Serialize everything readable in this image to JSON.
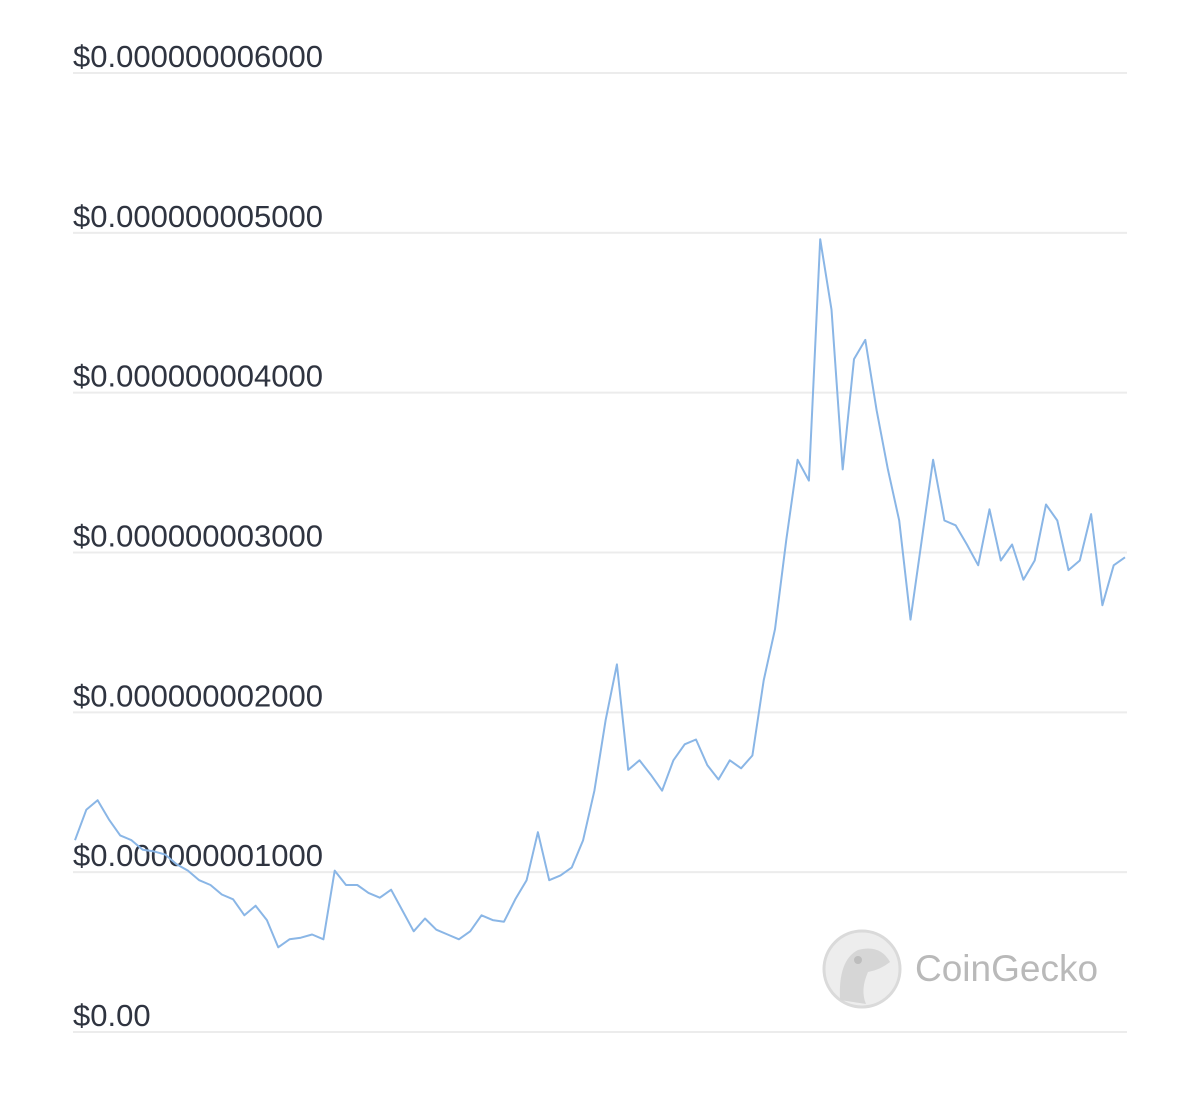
{
  "chart_data": {
    "type": "line",
    "watermark": "CoinGecko",
    "color": "#8ab6e6",
    "grid": true,
    "ylim": [
      0,
      6e-09
    ],
    "yticks": [
      {
        "value": 0,
        "label": "$0.00"
      },
      {
        "value": 1e-09,
        "label": "$0.000000001000"
      },
      {
        "value": 2e-09,
        "label": "$0.000000002000"
      },
      {
        "value": 3e-09,
        "label": "$0.000000003000"
      },
      {
        "value": 4e-09,
        "label": "$0.000000004000"
      },
      {
        "value": 5e-09,
        "label": "$0.000000005000"
      },
      {
        "value": 6e-09,
        "label": "$0.000000006000"
      }
    ],
    "values": [
      1.2e-09,
      1.39e-09,
      1.45e-09,
      1.33e-09,
      1.23e-09,
      1.2e-09,
      1.14e-09,
      1.13e-09,
      1.11e-09,
      1.05e-09,
      1.01e-09,
      9.5e-10,
      9.2e-10,
      8.6e-10,
      8.3e-10,
      7.3e-10,
      7.9e-10,
      7e-10,
      5.3e-10,
      5.8e-10,
      5.9e-10,
      6.1e-10,
      5.8e-10,
      1.01e-09,
      9.2e-10,
      9.2e-10,
      8.7e-10,
      8.4e-10,
      8.9e-10,
      7.6e-10,
      6.3e-10,
      7.1e-10,
      6.4e-10,
      6.1e-10,
      5.8e-10,
      6.3e-10,
      7.3e-10,
      7e-10,
      6.9e-10,
      8.3e-10,
      9.5e-10,
      1.25e-09,
      9.5e-10,
      9.8e-10,
      1.03e-09,
      1.2e-09,
      1.51e-09,
      1.95e-09,
      2.3e-09,
      1.64e-09,
      1.7e-09,
      1.61e-09,
      1.51e-09,
      1.7e-09,
      1.8e-09,
      1.83e-09,
      1.67e-09,
      1.58e-09,
      1.7e-09,
      1.65e-09,
      1.73e-09,
      2.2e-09,
      2.52e-09,
      3.08e-09,
      3.58e-09,
      3.45e-09,
      4.96e-09,
      4.52e-09,
      3.52e-09,
      4.21e-09,
      4.33e-09,
      3.89e-09,
      3.52e-09,
      3.2e-09,
      2.58e-09,
      3.08e-09,
      3.58e-09,
      3.2e-09,
      3.17e-09,
      3.05e-09,
      2.92e-09,
      3.27e-09,
      2.95e-09,
      3.05e-09,
      2.83e-09,
      2.95e-09,
      3.3e-09,
      3.2e-09,
      2.89e-09,
      2.95e-09,
      3.24e-09,
      2.67e-09,
      2.92e-09,
      2.97e-09
    ]
  }
}
